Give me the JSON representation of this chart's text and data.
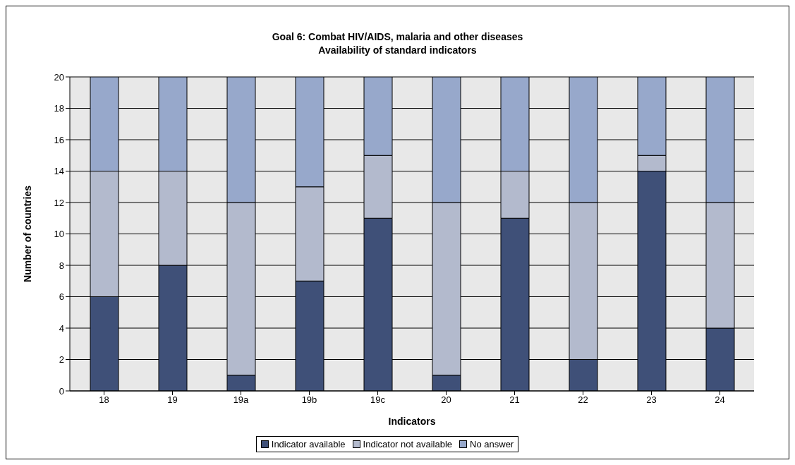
{
  "chart_data": {
    "type": "bar",
    "title": "Goal 6: Combat HIV/AIDS, malaria and other diseases",
    "subtitle": "Availability of standard indicators",
    "xlabel": "Indicators",
    "ylabel": "Number of countries",
    "categories": [
      "18",
      "19",
      "19a",
      "19b",
      "19c",
      "20",
      "21",
      "22",
      "23",
      "24"
    ],
    "stacked": true,
    "series": [
      {
        "name": "Indicator available",
        "color": "#3f5078",
        "values": [
          6,
          8,
          1,
          7,
          11,
          1,
          11,
          2,
          14,
          4
        ]
      },
      {
        "name": "Indicator not available",
        "color": "#b3bacd",
        "values": [
          8,
          6,
          11,
          6,
          4,
          11,
          3,
          10,
          1,
          8
        ]
      },
      {
        "name": "No answer",
        "color": "#97a8cb",
        "values": [
          6,
          6,
          8,
          7,
          5,
          8,
          6,
          8,
          5,
          8
        ]
      }
    ],
    "ylim": [
      0,
      20
    ],
    "yticks": [
      0,
      2,
      4,
      6,
      8,
      10,
      12,
      14,
      16,
      18,
      20
    ],
    "grid": "y",
    "legend": "bottom"
  }
}
